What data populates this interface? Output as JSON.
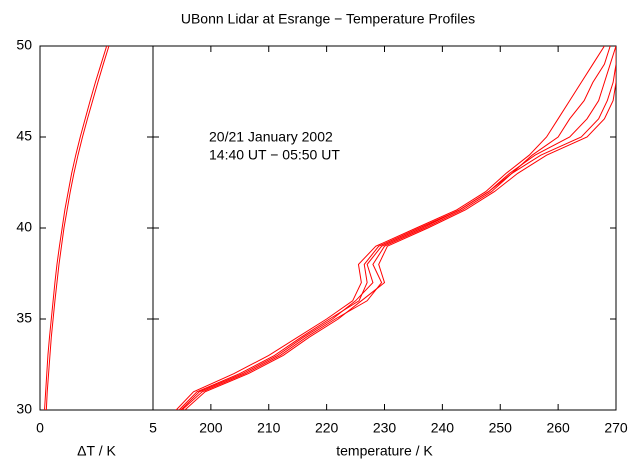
{
  "chart_data": [
    {
      "type": "line",
      "xlabel": "ΔT / K",
      "xlim": [
        0,
        5
      ],
      "xticks": [
        0,
        5
      ],
      "ylim": [
        30,
        50
      ],
      "yticks": [
        30,
        35,
        40,
        45,
        50
      ],
      "y": [
        30,
        31,
        32,
        33,
        34,
        35,
        36,
        37,
        38,
        39,
        40,
        41,
        42,
        43,
        44,
        45,
        46,
        47,
        48,
        49,
        50
      ],
      "color": "#ff0000",
      "series": [
        {
          "values": [
            0.2,
            0.25,
            0.3,
            0.35,
            0.42,
            0.5,
            0.58,
            0.66,
            0.75,
            0.86,
            0.98,
            1.1,
            1.25,
            1.4,
            1.58,
            1.78,
            2.0,
            2.22,
            2.45,
            2.7,
            2.95
          ]
        },
        {
          "values": [
            0.28,
            0.32,
            0.38,
            0.44,
            0.5,
            0.58,
            0.66,
            0.75,
            0.84,
            0.95,
            1.06,
            1.2,
            1.34,
            1.5,
            1.68,
            1.88,
            2.1,
            2.33,
            2.56,
            2.8,
            3.05
          ]
        }
      ]
    },
    {
      "type": "line",
      "title": "UBonn Lidar at Esrange − Temperature Profiles",
      "annotation": [
        "20/21 January 2002",
        "14:40 UT − 05:50 UT"
      ],
      "xlabel": "temperature / K",
      "xlim": [
        190,
        270
      ],
      "xticks": [
        200,
        210,
        220,
        230,
        240,
        250,
        260,
        270
      ],
      "ylim": [
        30,
        50
      ],
      "yticks": [
        30,
        35,
        40,
        45,
        50
      ],
      "y": [
        30,
        31,
        32,
        33,
        34,
        35,
        36,
        37,
        38,
        39,
        40,
        41,
        42,
        43,
        44,
        45,
        46,
        47,
        48,
        49,
        50
      ],
      "color": "#ff0000",
      "series": [
        {
          "values": [
            194.5,
            197.6,
            205,
            211,
            215.6,
            220.5,
            225.6,
            227,
            226.5,
            229,
            236,
            243,
            248,
            251.6,
            256,
            262,
            265,
            267,
            268,
            269,
            270
          ]
        },
        {
          "values": [
            195,
            198.5,
            206,
            212,
            216.5,
            221.5,
            227,
            229.5,
            228,
            230,
            237,
            243.5,
            248.5,
            252,
            257,
            264,
            267,
            268.5,
            269.5,
            270,
            270
          ]
        },
        {
          "values": [
            194,
            197,
            204,
            210,
            215,
            220,
            224.5,
            226,
            225.5,
            228.5,
            235.5,
            242.5,
            247.5,
            251,
            255,
            258,
            260,
            262,
            264,
            266,
            268
          ]
        },
        {
          "values": [
            195.5,
            199,
            206.5,
            212.5,
            217,
            222,
            226,
            230,
            229,
            230.5,
            237.5,
            244,
            249,
            253,
            258,
            265,
            268,
            269.5,
            270,
            270,
            270
          ]
        },
        {
          "values": [
            194.8,
            198,
            205.5,
            211.5,
            216,
            221,
            225,
            228,
            227,
            229.5,
            236.5,
            243,
            248,
            252,
            255.5,
            260,
            262,
            264.5,
            266,
            268,
            269
          ]
        }
      ]
    }
  ]
}
